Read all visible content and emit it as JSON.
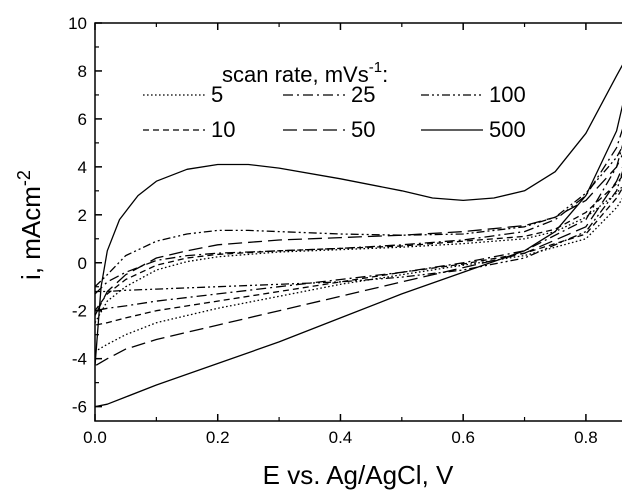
{
  "chart_data": {
    "type": "line",
    "title": "",
    "xlabel": "E vs. Ag/AgCl, V",
    "ylabel_main": "i, mAcm",
    "ylabel_sup": "-2",
    "xlim": [
      0.0,
      0.88
    ],
    "ylim": [
      -6.6,
      10
    ],
    "x_ticks": [
      "0.0",
      "0.2",
      "0.4",
      "0.6",
      "0.8"
    ],
    "y_ticks": [
      "-6",
      "-4",
      "-2",
      "0",
      "2",
      "4",
      "6",
      "8",
      "10"
    ],
    "legend": {
      "title_main": "scan rate, mVs",
      "title_sup": "-1",
      "title_end": ":",
      "placement": "top-center"
    },
    "series": [
      {
        "name": "5",
        "dash": "dotted",
        "anodic": [
          [
            0.0,
            -2.5
          ],
          [
            0.02,
            -1.6
          ],
          [
            0.05,
            -1.0
          ],
          [
            0.1,
            -0.3
          ],
          [
            0.15,
            0.05
          ],
          [
            0.2,
            0.25
          ],
          [
            0.3,
            0.45
          ],
          [
            0.4,
            0.55
          ],
          [
            0.5,
            0.65
          ],
          [
            0.6,
            0.8
          ],
          [
            0.7,
            1.0
          ],
          [
            0.75,
            1.3
          ],
          [
            0.8,
            1.9
          ],
          [
            0.85,
            2.9
          ],
          [
            0.88,
            3.8
          ]
        ],
        "cathodic": [
          [
            0.88,
            3.5
          ],
          [
            0.85,
            2.3
          ],
          [
            0.8,
            1.0
          ],
          [
            0.7,
            0.3
          ],
          [
            0.6,
            -0.1
          ],
          [
            0.5,
            -0.5
          ],
          [
            0.4,
            -0.9
          ],
          [
            0.3,
            -1.4
          ],
          [
            0.2,
            -1.9
          ],
          [
            0.1,
            -2.5
          ],
          [
            0.05,
            -3.0
          ],
          [
            0.02,
            -3.4
          ],
          [
            0.0,
            -3.7
          ]
        ]
      },
      {
        "name": "10",
        "dash": "short-dash",
        "anodic": [
          [
            0.0,
            -2.0
          ],
          [
            0.02,
            -1.3
          ],
          [
            0.05,
            -0.7
          ],
          [
            0.1,
            -0.1
          ],
          [
            0.15,
            0.2
          ],
          [
            0.2,
            0.35
          ],
          [
            0.3,
            0.5
          ],
          [
            0.4,
            0.6
          ],
          [
            0.5,
            0.7
          ],
          [
            0.6,
            0.9
          ],
          [
            0.7,
            1.1
          ],
          [
            0.75,
            1.4
          ],
          [
            0.8,
            2.1
          ],
          [
            0.85,
            3.3
          ],
          [
            0.88,
            4.3
          ]
        ],
        "cathodic": [
          [
            0.88,
            4.0
          ],
          [
            0.85,
            2.7
          ],
          [
            0.8,
            1.2
          ],
          [
            0.7,
            0.4
          ],
          [
            0.6,
            -0.05
          ],
          [
            0.5,
            -0.4
          ],
          [
            0.4,
            -0.8
          ],
          [
            0.3,
            -1.2
          ],
          [
            0.2,
            -1.6
          ],
          [
            0.1,
            -2.0
          ],
          [
            0.05,
            -2.3
          ],
          [
            0.02,
            -2.5
          ],
          [
            0.0,
            -2.6
          ]
        ]
      },
      {
        "name": "25",
        "dash": "dash-dot",
        "anodic": [
          [
            0.0,
            -1.3
          ],
          [
            0.02,
            -0.8
          ],
          [
            0.05,
            -0.4
          ],
          [
            0.1,
            0.1
          ],
          [
            0.15,
            0.3
          ],
          [
            0.2,
            0.4
          ],
          [
            0.3,
            0.5
          ],
          [
            0.4,
            0.6
          ],
          [
            0.5,
            0.75
          ],
          [
            0.6,
            0.95
          ],
          [
            0.7,
            1.3
          ],
          [
            0.75,
            1.8
          ],
          [
            0.8,
            2.8
          ],
          [
            0.85,
            4.8
          ],
          [
            0.88,
            7.2
          ]
        ],
        "cathodic": [
          [
            0.88,
            6.8
          ],
          [
            0.85,
            4.0
          ],
          [
            0.8,
            1.8
          ],
          [
            0.7,
            0.5
          ],
          [
            0.6,
            0.0
          ],
          [
            0.5,
            -0.4
          ],
          [
            0.4,
            -0.7
          ],
          [
            0.3,
            -1.0
          ],
          [
            0.2,
            -1.3
          ],
          [
            0.1,
            -1.6
          ],
          [
            0.05,
            -1.8
          ],
          [
            0.02,
            -1.9
          ],
          [
            0.0,
            -2.0
          ]
        ]
      },
      {
        "name": "50",
        "dash": "long-dash",
        "anodic": [
          [
            0.0,
            -2.2
          ],
          [
            0.02,
            -1.2
          ],
          [
            0.05,
            -0.5
          ],
          [
            0.1,
            0.2
          ],
          [
            0.15,
            0.5
          ],
          [
            0.2,
            0.75
          ],
          [
            0.3,
            0.95
          ],
          [
            0.4,
            1.05
          ],
          [
            0.5,
            1.15
          ],
          [
            0.6,
            1.3
          ],
          [
            0.7,
            1.55
          ],
          [
            0.75,
            1.9
          ],
          [
            0.8,
            2.6
          ],
          [
            0.85,
            4.0
          ],
          [
            0.88,
            5.6
          ]
        ],
        "cathodic": [
          [
            0.88,
            5.2
          ],
          [
            0.85,
            3.4
          ],
          [
            0.8,
            1.5
          ],
          [
            0.7,
            0.4
          ],
          [
            0.6,
            -0.2
          ],
          [
            0.5,
            -0.8
          ],
          [
            0.4,
            -1.4
          ],
          [
            0.3,
            -2.0
          ],
          [
            0.2,
            -2.6
          ],
          [
            0.1,
            -3.2
          ],
          [
            0.05,
            -3.6
          ],
          [
            0.02,
            -4.0
          ],
          [
            0.0,
            -4.3
          ]
        ]
      },
      {
        "name": "100",
        "dash": "dash-dot-dot",
        "anodic": [
          [
            0.0,
            -1.0
          ],
          [
            0.02,
            -0.5
          ],
          [
            0.05,
            0.3
          ],
          [
            0.1,
            0.9
          ],
          [
            0.15,
            1.2
          ],
          [
            0.2,
            1.35
          ],
          [
            0.25,
            1.35
          ],
          [
            0.3,
            1.3
          ],
          [
            0.4,
            1.2
          ],
          [
            0.5,
            1.15
          ],
          [
            0.6,
            1.2
          ],
          [
            0.7,
            1.5
          ],
          [
            0.75,
            1.9
          ],
          [
            0.8,
            2.9
          ],
          [
            0.85,
            4.4
          ],
          [
            0.88,
            5.8
          ]
        ],
        "cathodic": [
          [
            0.88,
            5.5
          ],
          [
            0.85,
            3.0
          ],
          [
            0.8,
            1.3
          ],
          [
            0.7,
            0.2
          ],
          [
            0.6,
            -0.3
          ],
          [
            0.5,
            -0.6
          ],
          [
            0.4,
            -0.8
          ],
          [
            0.3,
            -0.9
          ],
          [
            0.2,
            -1.0
          ],
          [
            0.1,
            -1.1
          ],
          [
            0.05,
            -1.15
          ],
          [
            0.02,
            -1.2
          ],
          [
            0.0,
            -1.2
          ]
        ]
      },
      {
        "name": "500",
        "dash": "solid",
        "anodic": [
          [
            0.0,
            -4.3
          ],
          [
            0.01,
            -1.0
          ],
          [
            0.02,
            0.5
          ],
          [
            0.04,
            1.8
          ],
          [
            0.07,
            2.8
          ],
          [
            0.1,
            3.4
          ],
          [
            0.15,
            3.9
          ],
          [
            0.2,
            4.1
          ],
          [
            0.25,
            4.1
          ],
          [
            0.3,
            3.95
          ],
          [
            0.4,
            3.5
          ],
          [
            0.5,
            3.0
          ],
          [
            0.55,
            2.7
          ],
          [
            0.6,
            2.6
          ],
          [
            0.65,
            2.7
          ],
          [
            0.7,
            3.0
          ],
          [
            0.75,
            3.8
          ],
          [
            0.8,
            5.4
          ],
          [
            0.85,
            7.8
          ],
          [
            0.88,
            9.2
          ]
        ],
        "cathodic": [
          [
            0.88,
            8.8
          ],
          [
            0.85,
            5.5
          ],
          [
            0.8,
            2.8
          ],
          [
            0.75,
            1.3
          ],
          [
            0.7,
            0.5
          ],
          [
            0.6,
            -0.4
          ],
          [
            0.5,
            -1.3
          ],
          [
            0.4,
            -2.3
          ],
          [
            0.3,
            -3.3
          ],
          [
            0.2,
            -4.2
          ],
          [
            0.1,
            -5.1
          ],
          [
            0.05,
            -5.6
          ],
          [
            0.02,
            -5.9
          ],
          [
            0.0,
            -6.0
          ]
        ]
      }
    ]
  }
}
